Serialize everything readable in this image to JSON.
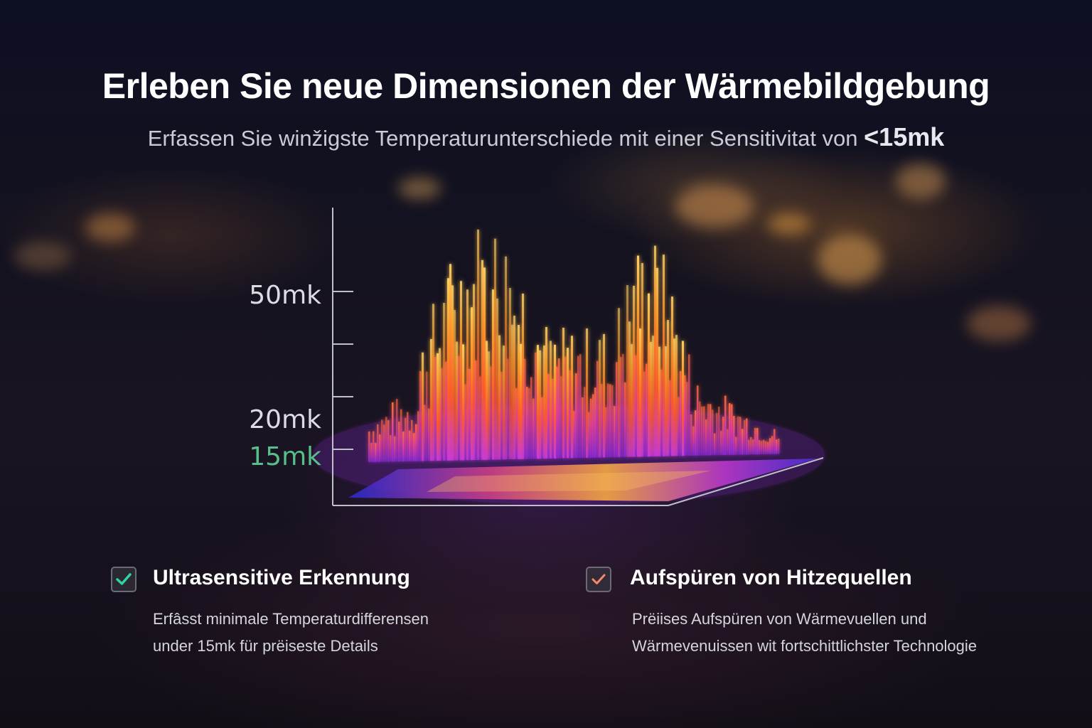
{
  "title": "Erleben Sie neue Dimensionen der Wärmebildgebung",
  "subtitle": {
    "text": "Erfassen Sie winžigste Temperaturunterschiede mit einer Sensitivitat von",
    "value": "<15mk"
  },
  "chart_data": {
    "type": "bar",
    "tick_labels": [
      {
        "label": "50mk",
        "value": 50,
        "highlight": false
      },
      {
        "label": "20mk",
        "value": 20,
        "highlight": false
      },
      {
        "label": "15mk",
        "value": 15,
        "highlight": true
      }
    ],
    "colors": {
      "accent": "#57c08a",
      "hot": "#ffb43a",
      "mid": "#ff6a2a",
      "cool": "#b23ad8",
      "base": "#3b2dd6"
    }
  },
  "features": [
    {
      "title": "Ultrasensitive Erkennung",
      "desc_line1": "Erfâsst minimale Temperaturdifferensen",
      "desc_line2": "under 15mk für prëiseste Details",
      "checkbox_color": "#2fd6a0",
      "checked": true
    },
    {
      "title": "Aufspüren von Hitzequellen",
      "desc_line1": "Prëiises Aufspüren von Wärmevuellen und",
      "desc_line2": "Wärmevenuissen wit fortschittlichster Technologie",
      "checkbox_color": "#f08a6a",
      "checked": true
    }
  ]
}
